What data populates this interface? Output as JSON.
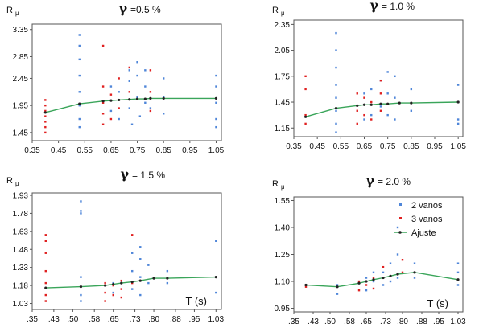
{
  "colors": {
    "series_2_vanos": "#4f86d9",
    "series_3_vanos": "#e02020",
    "ajuste": "#3aa55a",
    "fit_marker": "#222222",
    "frame": "#555555"
  },
  "legend": {
    "placement": "top-right",
    "items": [
      {
        "key": "2v",
        "label": "2 vanos"
      },
      {
        "key": "3v",
        "label": "3 vanos"
      },
      {
        "key": "fit",
        "label": "Ajuste"
      }
    ]
  },
  "chart_data": [
    {
      "type": "scatter",
      "ylabel_main": "R",
      "ylabel_sub": "μ",
      "title_symbol": "γ",
      "title_text": "=0.5 %",
      "xlabel": "",
      "xticks": [
        "0.35",
        "0.45",
        "0.55",
        "0.65",
        "0.75",
        "0.85",
        "0.95",
        "1.05"
      ],
      "yticks": [
        "1.45",
        "1.95",
        "2.45",
        "2.85",
        "3.35"
      ],
      "xlim": [
        0.35,
        1.07
      ],
      "ylim": [
        1.3,
        3.45
      ],
      "grid": false,
      "series": [
        {
          "key": "2v",
          "name": "2 vanos",
          "points": [
            [
              0.53,
              1.95
            ],
            [
              0.53,
              2.2
            ],
            [
              0.53,
              2.5
            ],
            [
              0.53,
              2.8
            ],
            [
              0.53,
              3.05
            ],
            [
              0.53,
              3.25
            ],
            [
              0.53,
              1.7
            ],
            [
              0.53,
              1.55
            ],
            [
              0.65,
              1.85
            ],
            [
              0.65,
              2.3
            ],
            [
              0.68,
              1.7
            ],
            [
              0.68,
              2.2
            ],
            [
              0.72,
              1.9
            ],
            [
              0.72,
              2.4
            ],
            [
              0.72,
              2.6
            ],
            [
              0.73,
              1.6
            ],
            [
              0.75,
              2.1
            ],
            [
              0.75,
              2.5
            ],
            [
              0.75,
              2.75
            ],
            [
              0.76,
              1.75
            ],
            [
              0.78,
              2.0
            ],
            [
              0.78,
              2.3
            ],
            [
              0.78,
              2.6
            ],
            [
              0.8,
              1.9
            ],
            [
              0.85,
              2.1
            ],
            [
              0.85,
              2.45
            ],
            [
              0.85,
              1.8
            ],
            [
              1.05,
              1.7
            ],
            [
              1.05,
              2.0
            ],
            [
              1.05,
              2.3
            ],
            [
              1.05,
              2.5
            ],
            [
              1.05,
              1.55
            ]
          ]
        },
        {
          "key": "3v",
          "name": "3 vanos",
          "points": [
            [
              0.4,
              1.45
            ],
            [
              0.4,
              1.55
            ],
            [
              0.4,
              1.65
            ],
            [
              0.4,
              1.75
            ],
            [
              0.4,
              1.85
            ],
            [
              0.4,
              1.95
            ],
            [
              0.4,
              2.05
            ],
            [
              0.62,
              1.6
            ],
            [
              0.62,
              1.8
            ],
            [
              0.62,
              2.0
            ],
            [
              0.62,
              2.3
            ],
            [
              0.62,
              3.05
            ],
            [
              0.65,
              1.7
            ],
            [
              0.65,
              2.15
            ],
            [
              0.68,
              1.9
            ],
            [
              0.68,
              2.45
            ],
            [
              0.72,
              2.2
            ],
            [
              0.72,
              2.65
            ],
            [
              0.8,
              1.85
            ],
            [
              0.8,
              2.2
            ],
            [
              0.8,
              2.6
            ]
          ]
        }
      ],
      "fit": {
        "key": "fit",
        "name": "Ajuste",
        "x": [
          0.4,
          0.53,
          0.62,
          0.65,
          0.68,
          0.72,
          0.75,
          0.78,
          0.8,
          0.85,
          1.05
        ],
        "y": [
          1.82,
          1.98,
          2.03,
          2.04,
          2.05,
          2.06,
          2.07,
          2.07,
          2.08,
          2.08,
          2.08
        ]
      },
      "show_legend": false
    },
    {
      "type": "scatter",
      "ylabel_main": "R",
      "ylabel_sub": "μ",
      "title_symbol": "γ",
      "title_text": "= 1.0 %",
      "xlabel": "",
      "xticks": [
        "0.35",
        "0.45",
        "0.55",
        "0.65",
        "0.75",
        "0.85",
        "0.95",
        "1.05"
      ],
      "yticks": [
        "1.15",
        "1.45",
        "1.75",
        "2.05",
        "2.35"
      ],
      "xlim": [
        0.35,
        1.07
      ],
      "ylim": [
        1.05,
        2.4
      ],
      "grid": false,
      "series": [
        {
          "key": "2v",
          "name": "2 vanos",
          "points": [
            [
              0.53,
              1.2
            ],
            [
              0.53,
              1.35
            ],
            [
              0.53,
              1.5
            ],
            [
              0.53,
              1.65
            ],
            [
              0.53,
              1.85
            ],
            [
              0.53,
              2.05
            ],
            [
              0.53,
              2.25
            ],
            [
              0.53,
              1.1
            ],
            [
              0.65,
              1.25
            ],
            [
              0.65,
              1.55
            ],
            [
              0.68,
              1.3
            ],
            [
              0.68,
              1.6
            ],
            [
              0.72,
              1.4
            ],
            [
              0.72,
              1.7
            ],
            [
              0.75,
              1.3
            ],
            [
              0.75,
              1.55
            ],
            [
              0.75,
              1.8
            ],
            [
              0.78,
              1.25
            ],
            [
              0.78,
              1.5
            ],
            [
              0.78,
              1.75
            ],
            [
              0.85,
              1.35
            ],
            [
              0.85,
              1.6
            ],
            [
              1.05,
              1.25
            ],
            [
              1.05,
              1.45
            ],
            [
              1.05,
              1.65
            ],
            [
              1.05,
              1.2
            ]
          ]
        },
        {
          "key": "3v",
          "name": "3 vanos",
          "points": [
            [
              0.4,
              1.2
            ],
            [
              0.4,
              1.3
            ],
            [
              0.4,
              1.6
            ],
            [
              0.4,
              1.75
            ],
            [
              0.62,
              1.2
            ],
            [
              0.62,
              1.35
            ],
            [
              0.62,
              1.55
            ],
            [
              0.65,
              1.3
            ],
            [
              0.65,
              1.5
            ],
            [
              0.68,
              1.25
            ],
            [
              0.68,
              1.45
            ],
            [
              0.72,
              1.35
            ],
            [
              0.72,
              1.55
            ],
            [
              0.72,
              1.7
            ]
          ]
        }
      ],
      "fit": {
        "key": "fit",
        "name": "Ajuste",
        "x": [
          0.4,
          0.53,
          0.62,
          0.65,
          0.68,
          0.72,
          0.75,
          0.8,
          0.85,
          1.05
        ],
        "y": [
          1.28,
          1.38,
          1.41,
          1.42,
          1.42,
          1.43,
          1.43,
          1.44,
          1.44,
          1.45
        ]
      },
      "show_legend": false
    },
    {
      "type": "scatter",
      "ylabel_main": "R",
      "ylabel_sub": "μ",
      "title_symbol": "γ",
      "title_text": "= 1.5 %",
      "xlabel": "T (s)",
      "xticks": [
        ".35",
        ".43",
        ".50",
        ".58",
        ".65",
        ".73",
        ".80",
        ".88",
        ".95",
        "1.03"
      ],
      "yticks": [
        "1.03",
        "1.18",
        "1.33",
        "1.48",
        "1.63",
        "1.78",
        "1.93"
      ],
      "xlim": [
        0.35,
        1.05
      ],
      "ylim": [
        0.98,
        1.95
      ],
      "grid": false,
      "series": [
        {
          "key": "2v",
          "name": "2 vanos",
          "points": [
            [
              0.53,
              1.05
            ],
            [
              0.53,
              1.1
            ],
            [
              0.53,
              1.25
            ],
            [
              0.53,
              1.78
            ],
            [
              0.53,
              1.8
            ],
            [
              0.53,
              1.88
            ],
            [
              0.65,
              1.12
            ],
            [
              0.65,
              1.2
            ],
            [
              0.72,
              1.15
            ],
            [
              0.72,
              1.3
            ],
            [
              0.72,
              1.45
            ],
            [
              0.75,
              1.1
            ],
            [
              0.75,
              1.25
            ],
            [
              0.75,
              1.4
            ],
            [
              0.75,
              1.5
            ],
            [
              0.78,
              1.2
            ],
            [
              0.78,
              1.35
            ],
            [
              0.85,
              1.2
            ],
            [
              0.85,
              1.3
            ],
            [
              1.03,
              1.12
            ],
            [
              1.03,
              1.25
            ],
            [
              1.03,
              1.55
            ]
          ]
        },
        {
          "key": "3v",
          "name": "3 vanos",
          "points": [
            [
              0.4,
              1.05
            ],
            [
              0.4,
              1.1
            ],
            [
              0.4,
              1.2
            ],
            [
              0.4,
              1.3
            ],
            [
              0.4,
              1.45
            ],
            [
              0.4,
              1.55
            ],
            [
              0.4,
              1.6
            ],
            [
              0.62,
              1.05
            ],
            [
              0.62,
              1.12
            ],
            [
              0.62,
              1.2
            ],
            [
              0.65,
              1.1
            ],
            [
              0.65,
              1.18
            ],
            [
              0.68,
              1.08
            ],
            [
              0.68,
              1.15
            ],
            [
              0.68,
              1.22
            ],
            [
              0.72,
              1.2
            ],
            [
              0.72,
              1.6
            ]
          ]
        }
      ],
      "fit": {
        "key": "fit",
        "name": "Ajuste",
        "x": [
          0.4,
          0.53,
          0.62,
          0.65,
          0.68,
          0.72,
          0.75,
          0.8,
          0.85,
          1.03
        ],
        "y": [
          1.16,
          1.17,
          1.18,
          1.19,
          1.2,
          1.21,
          1.22,
          1.24,
          1.24,
          1.25
        ]
      },
      "show_legend": false
    },
    {
      "type": "scatter",
      "ylabel_main": "R",
      "ylabel_sub": "μ",
      "title_symbol": "γ",
      "title_text": "= 2.0 %",
      "xlabel": "T (s)",
      "xticks": [
        ".35",
        ".43",
        ".50",
        ".58",
        ".65",
        ".73",
        ".80",
        ".88",
        ".95",
        "1.03"
      ],
      "yticks": [
        "0.95",
        "1.10",
        "1.25",
        "1.40",
        "1.55"
      ],
      "xlim": [
        0.35,
        1.05
      ],
      "ylim": [
        0.93,
        1.57
      ],
      "grid": false,
      "series": [
        {
          "key": "2v",
          "name": "2 vanos",
          "points": [
            [
              0.53,
              1.03
            ],
            [
              0.53,
              1.08
            ],
            [
              0.65,
              1.05
            ],
            [
              0.65,
              1.12
            ],
            [
              0.68,
              1.1
            ],
            [
              0.68,
              1.15
            ],
            [
              0.72,
              1.08
            ],
            [
              0.72,
              1.15
            ],
            [
              0.75,
              1.1
            ],
            [
              0.75,
              1.2
            ],
            [
              0.78,
              1.12
            ],
            [
              0.78,
              1.25
            ],
            [
              0.78,
              1.4
            ],
            [
              0.85,
              1.12
            ],
            [
              0.85,
              1.2
            ],
            [
              1.03,
              1.08
            ],
            [
              1.03,
              1.15
            ],
            [
              1.03,
              1.2
            ]
          ]
        },
        {
          "key": "3v",
          "name": "3 vanos",
          "points": [
            [
              0.4,
              1.07
            ],
            [
              0.62,
              1.05
            ],
            [
              0.62,
              1.1
            ],
            [
              0.65,
              1.08
            ],
            [
              0.68,
              1.06
            ],
            [
              0.68,
              1.12
            ],
            [
              0.72,
              1.12
            ],
            [
              0.72,
              1.18
            ],
            [
              0.8,
              1.15
            ],
            [
              0.8,
              1.22
            ]
          ]
        }
      ],
      "fit": {
        "key": "fit",
        "name": "Ajuste",
        "x": [
          0.4,
          0.53,
          0.62,
          0.65,
          0.68,
          0.72,
          0.75,
          0.78,
          0.85,
          1.03
        ],
        "y": [
          1.08,
          1.07,
          1.09,
          1.1,
          1.11,
          1.12,
          1.13,
          1.14,
          1.15,
          1.11
        ]
      },
      "show_legend": true
    }
  ]
}
